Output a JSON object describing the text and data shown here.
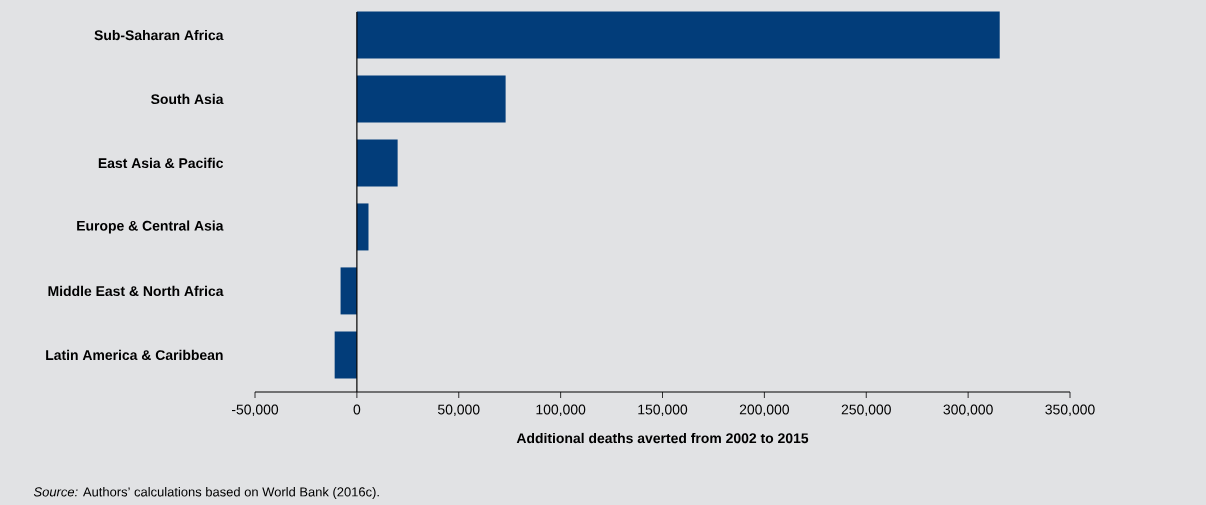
{
  "chart_data": {
    "type": "bar",
    "orientation": "horizontal",
    "categories": [
      "Sub-Saharan Africa",
      "South Asia",
      "East Asia & Pacific",
      "Europe & Central Asia",
      "Middle East & North Africa",
      "Latin America & Caribbean"
    ],
    "values": [
      315500,
      73000,
      20000,
      5700,
      -8000,
      -10900
    ],
    "color": "#023d7a",
    "xlabel": "Additional deaths averted from 2002 to 2015",
    "xlim": [
      -50000,
      350000
    ],
    "xticks": [
      {
        "value": -50000,
        "label": "-50,000"
      },
      {
        "value": 0,
        "label": "0"
      },
      {
        "value": 50000,
        "label": "50,000"
      },
      {
        "value": 100000,
        "label": "100,000"
      },
      {
        "value": 150000,
        "label": "150,000"
      },
      {
        "value": 200000,
        "label": "200,000"
      },
      {
        "value": 250000,
        "label": "250,000"
      },
      {
        "value": 300000,
        "label": "300,000"
      },
      {
        "value": 350000,
        "label": "350,000"
      }
    ],
    "annotations": [
      "*Source:* Authors’ calculations based on World Bank (2016c)."
    ]
  }
}
